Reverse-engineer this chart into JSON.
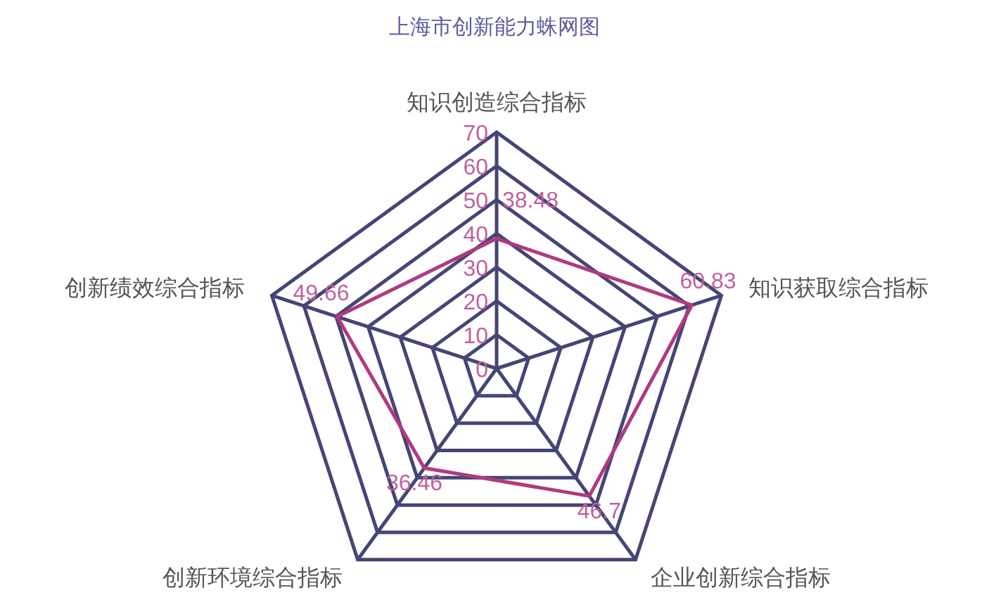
{
  "chart_data": {
    "type": "radar",
    "title": "上海市创新能力蛛网图",
    "categories": [
      "知识创造综合指标",
      "知识获取综合指标",
      "企业创新综合指标",
      "创新环境综合指标",
      "创新绩效综合指标"
    ],
    "series": [
      {
        "color": "#b03a7e",
        "values": [
          38.48,
          60.83,
          46.7,
          36.46,
          49.66
        ]
      }
    ],
    "ylim": [
      0,
      70
    ],
    "yticks": [
      0,
      10,
      20,
      30,
      40,
      50,
      60,
      70
    ],
    "grid": true,
    "data_labels": true
  }
}
